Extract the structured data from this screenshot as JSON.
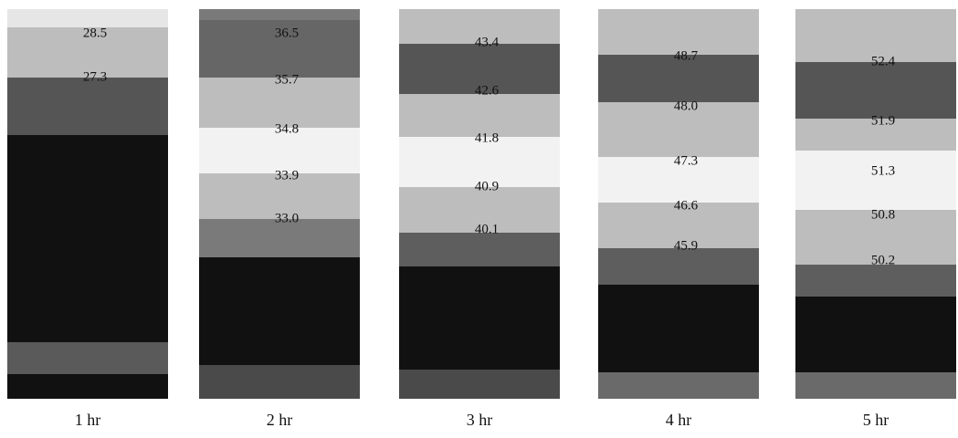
{
  "panels": [
    {
      "label": "1 hr",
      "values": [
        "28.5",
        "27.3"
      ]
    },
    {
      "label": "2 hr",
      "values": [
        "36.5",
        "35.7",
        "34.8",
        "33.9",
        "33.0"
      ]
    },
    {
      "label": "3 hr",
      "values": [
        "43.4",
        "42.6",
        "41.8",
        "40.9",
        "40.1"
      ]
    },
    {
      "label": "4 hr",
      "values": [
        "48.7",
        "48.0",
        "47.3",
        "46.6",
        "45.9"
      ]
    },
    {
      "label": "5 hr",
      "values": [
        "52.4",
        "51.9",
        "51.3",
        "50.8",
        "50.2"
      ]
    }
  ]
}
